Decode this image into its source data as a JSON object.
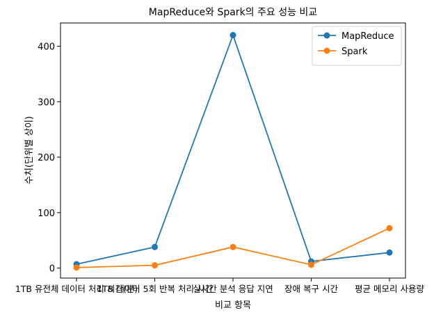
{
  "chart_data": {
    "type": "line",
    "title": "MapReduce와 Spark의 주요 성능 비교",
    "xlabel": "비교 항목",
    "ylabel": "수치(단위별 상이)",
    "categories": [
      "1TB 유전체 데이터 처리 시간(분)",
      "1TB 데이터 5회 반복 처리 시간",
      "실시간 분석 응답 지연",
      "장애 복구 시간",
      "평균 메모리 사용량"
    ],
    "yticks": [
      0,
      100,
      200,
      300,
      400
    ],
    "ylim": [
      -18,
      442
    ],
    "grid": false,
    "legend_position": "top-right",
    "series": [
      {
        "name": "MapReduce",
        "color": "#1f77b4",
        "values": [
          7,
          38,
          420,
          12,
          28
        ]
      },
      {
        "name": "Spark",
        "color": "#ff7f0e",
        "values": [
          1,
          5,
          38,
          6,
          72
        ]
      }
    ]
  }
}
